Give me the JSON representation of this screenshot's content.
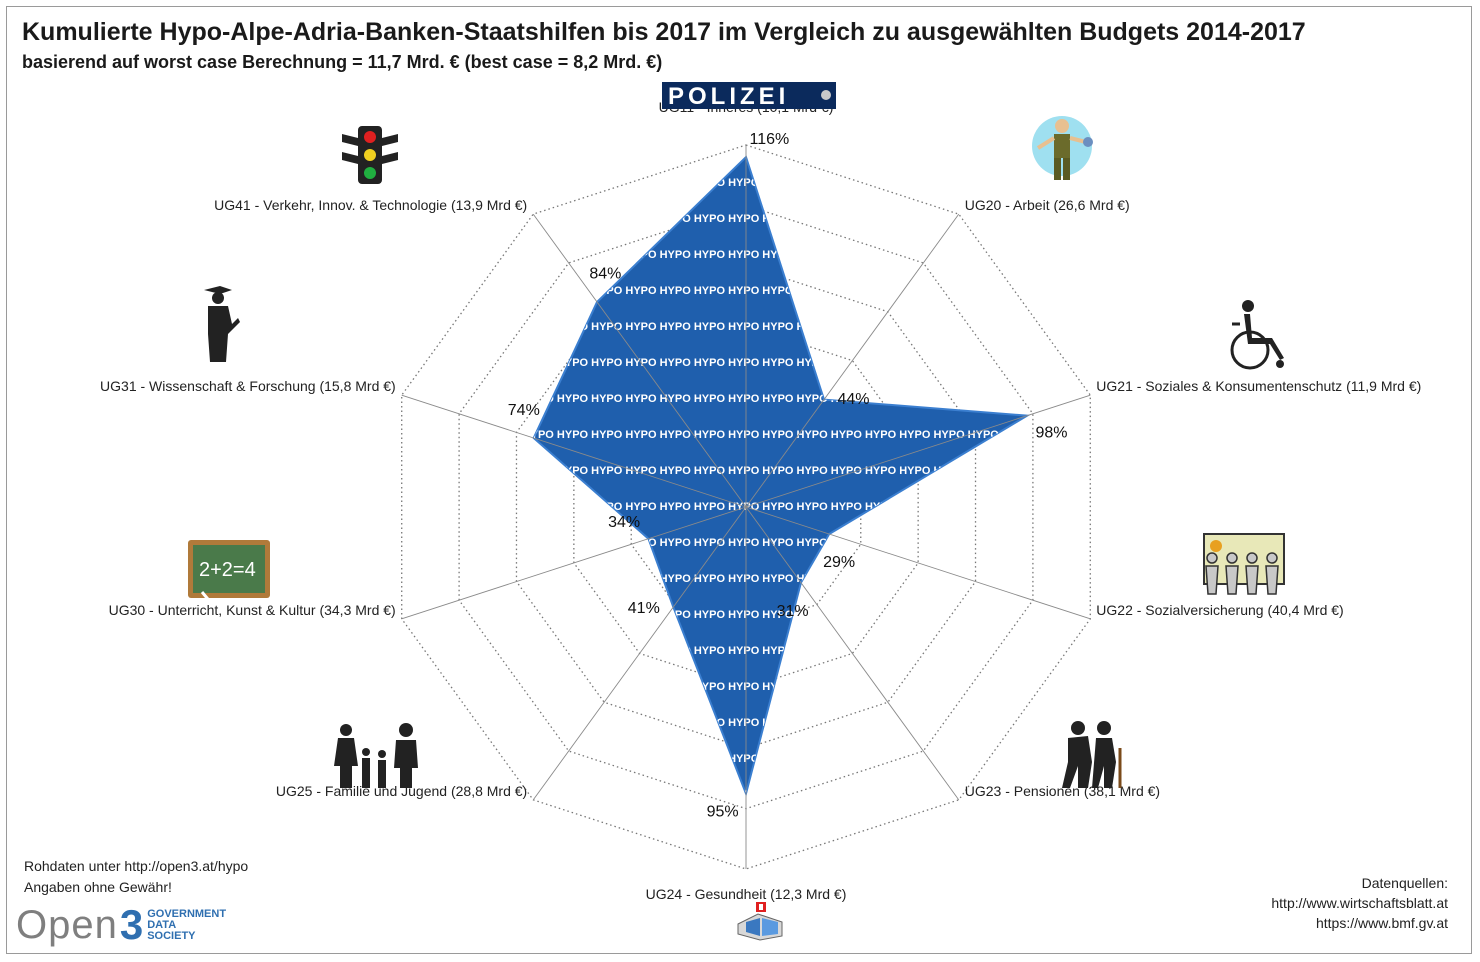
{
  "header": {
    "title": "Kumulierte Hypo-Alpe-Adria-Banken-Staatshilfen bis 2017 im Vergleich zu ausgewählten Budgets 2014-2017",
    "subtitle": "basierend auf worst case Berechnung = 11,7 Mrd. € (best case = 8,2 Mrd. €)"
  },
  "chart_data": {
    "type": "radar",
    "series": [
      {
        "name": "",
        "fill_text": "HYPO",
        "color": "#1f5fad",
        "categories": [
          "UG11 - Inneres (10,1 Mrd €)",
          "UG20 - Arbeit (26,6 Mrd €)",
          "UG21 - Soziales & Konsumentenschutz  (11,9 Mrd €)",
          "UG22 - Sozialversicherung (40,4 Mrd €)",
          "UG23 - Pensionen (38,1 Mrd €)",
          "UG24 - Gesundheit (12,3 Mrd €)",
          "UG25 - Familie und Jugend (28,8 Mrd €)",
          "UG30 - Unterricht, Kunst & Kultur (34,3 Mrd €)",
          "UG31 - Wissenschaft & Forschung (15,8 Mrd €)",
          "UG41 - Verkehr, Innov. & Technologie (13,9 Mrd €)"
        ],
        "values": [
          116,
          44,
          98,
          29,
          31,
          95,
          41,
          34,
          74,
          84
        ],
        "labels": [
          "116%",
          "44%",
          "98%",
          "29%",
          "31%",
          "95%",
          "41%",
          "34%",
          "74%",
          "84%"
        ]
      }
    ],
    "rlim": [
      0,
      120
    ],
    "grid_rings": 6,
    "grid": true,
    "legend": "none"
  },
  "icons": {
    "polizei_badge": "POLIZEI",
    "traffic_light": "traffic-light-icon",
    "worker": "worker-icon",
    "wheelchair": "wheelchair-icon",
    "graduate": "graduate-icon",
    "chalkboard_text": "2+2=4",
    "social_people": "people-chain-icon",
    "family": "family-icon",
    "elderly": "elderly-couple-icon",
    "hospital": "hospital-icon"
  },
  "footer": {
    "note1": "Rohdaten unter http://open3.at/hypo",
    "note2": "Angaben ohne Gewähr!",
    "logo_open": "Open",
    "logo_three": "3",
    "logo_line1": "GOVERNMENT",
    "logo_line2": "DATA",
    "logo_line3": "SOCIETY",
    "sources_title": "Datenquellen:",
    "source1": "http://www.wirtschaftsblatt.at",
    "source2": "https://www.bmf.gv.at"
  }
}
